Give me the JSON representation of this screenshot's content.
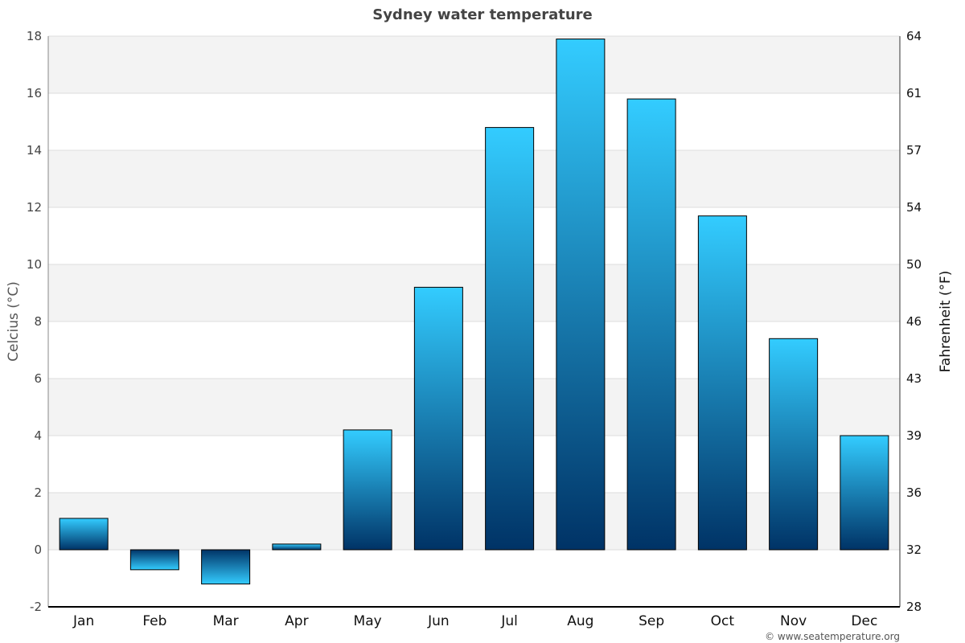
{
  "chart_data": {
    "type": "bar",
    "title": "Sydney water temperature",
    "categories": [
      "Jan",
      "Feb",
      "Mar",
      "Apr",
      "May",
      "Jun",
      "Jul",
      "Aug",
      "Sep",
      "Oct",
      "Nov",
      "Dec"
    ],
    "series": [
      {
        "values": [
          1.1,
          -0.7,
          -1.2,
          0.2,
          4.2,
          9.2,
          14.8,
          17.9,
          15.8,
          11.7,
          7.4,
          4.0
        ]
      }
    ],
    "ylabel": "Celcius (°C)",
    "y2label": "Fahrenheit (°F)",
    "ylim": [
      -2,
      18
    ],
    "y_ticks": [
      -2,
      0,
      2,
      4,
      6,
      8,
      10,
      12,
      14,
      16,
      18
    ],
    "y2_ticks": [
      28,
      32,
      36,
      39,
      43,
      46,
      50,
      54,
      57,
      61,
      64
    ],
    "grid": true,
    "colors": {
      "bar_top": "#33ccff",
      "bar_bottom": "#003366",
      "band": "#f3f3f3",
      "grid": "#dddddd"
    }
  },
  "credit": "© www.seatemperature.org"
}
